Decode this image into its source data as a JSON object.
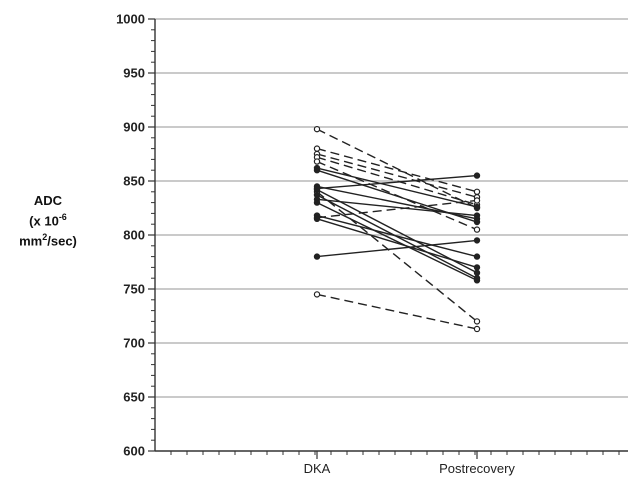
{
  "chart_data": {
    "type": "line",
    "categories": [
      "DKA",
      "Postrecovery"
    ],
    "ylabel_lines": [
      "ADC",
      "(x 10",
      "-6",
      "mm",
      "2",
      "/sec)"
    ],
    "ylim": [
      600,
      1000
    ],
    "yticks": [
      "600",
      "650",
      "700",
      "750",
      "800",
      "850",
      "900",
      "950",
      "1000"
    ],
    "grid": true,
    "series": [
      {
        "group": "solid",
        "values": [
          860,
          812
        ]
      },
      {
        "group": "solid",
        "values": [
          862,
          826
        ]
      },
      {
        "group": "solid",
        "values": [
          842,
          765
        ]
      },
      {
        "group": "solid",
        "values": [
          845,
          815
        ]
      },
      {
        "group": "solid",
        "values": [
          837,
          760
        ]
      },
      {
        "group": "solid",
        "values": [
          830,
          758
        ]
      },
      {
        "group": "solid",
        "values": [
          818,
          780
        ]
      },
      {
        "group": "solid",
        "values": [
          815,
          770
        ]
      },
      {
        "group": "solid",
        "values": [
          843,
          855
        ]
      },
      {
        "group": "solid",
        "values": [
          780,
          795
        ]
      },
      {
        "group": "solid",
        "values": [
          833,
          818
        ]
      },
      {
        "group": "dashed",
        "values": [
          898,
          825
        ]
      },
      {
        "group": "dashed",
        "values": [
          880,
          840
        ]
      },
      {
        "group": "dashed",
        "values": [
          875,
          835
        ]
      },
      {
        "group": "dashed",
        "values": [
          872,
          828
        ]
      },
      {
        "group": "dashed",
        "values": [
          868,
          805
        ]
      },
      {
        "group": "dashed",
        "values": [
          840,
          720
        ]
      },
      {
        "group": "dashed",
        "values": [
          816,
          832
        ]
      },
      {
        "group": "dashed",
        "values": [
          745,
          713
        ]
      }
    ],
    "colors": {
      "axis": "#333333",
      "grid": "#aaaaaa",
      "line": "#222222"
    }
  }
}
